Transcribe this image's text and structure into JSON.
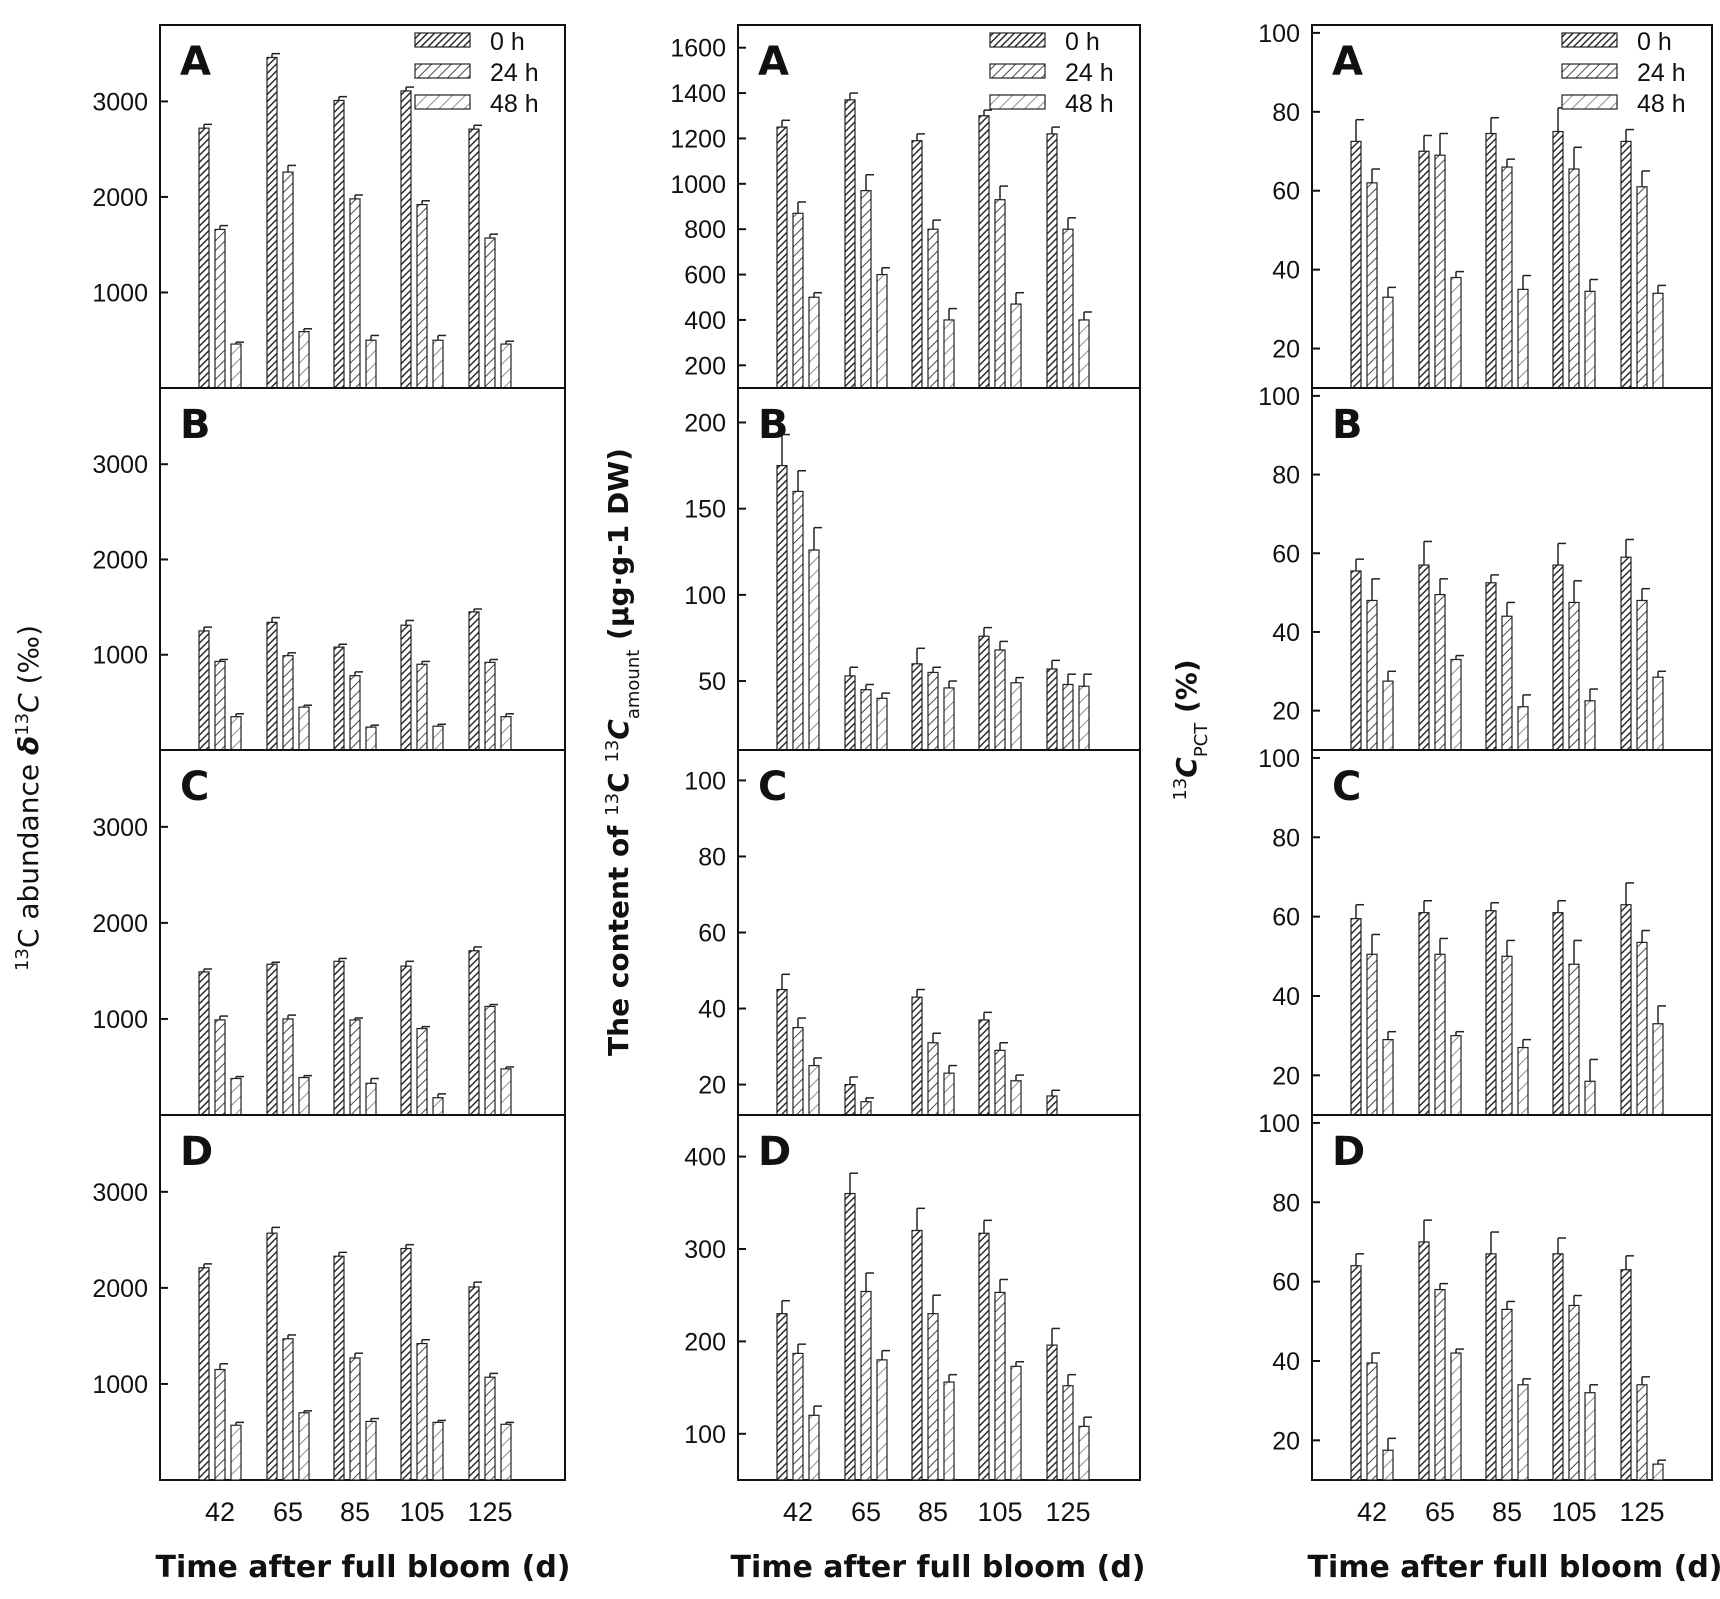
{
  "figure": {
    "xlabel": "Time after full bloom (d)",
    "column_titles": [
      {
        "prefix": "13",
        "main": "C abundance ",
        "delta": "δ",
        "sup2": "13",
        "italic": "C",
        "suffix": " (‰)"
      },
      {
        "prefix": "The content of ",
        "sup": "13",
        "mid": "C ",
        "sup2": "13",
        "italic": "C",
        "sub": "amount",
        "suffix": " (μg·g-1 DW)"
      },
      {
        "sup": "13",
        "italic": "C",
        "sub": "PCT",
        "suffix": " (%)"
      }
    ]
  },
  "legend": [
    "0 h",
    "24 h",
    "48 h"
  ],
  "series_colors": {
    "s0": "#3a3a3a",
    "s1": "#5a5a5a",
    "s2": "#777777"
  },
  "chart_data": [
    {
      "type": "bar",
      "column": 1,
      "panel": "A",
      "title": "A",
      "categories": [
        "42",
        "65",
        "85",
        "105",
        "125"
      ],
      "ylim": [
        0,
        3800
      ],
      "yticks": [
        1000,
        2000,
        3000
      ],
      "series": [
        {
          "name": "0 h",
          "values": [
            2720,
            3460,
            3010,
            3110,
            2710
          ],
          "errors": [
            40,
            40,
            40,
            40,
            40
          ]
        },
        {
          "name": "24 h",
          "values": [
            1660,
            2260,
            1980,
            1920,
            1570
          ],
          "errors": [
            40,
            70,
            40,
            40,
            40
          ]
        },
        {
          "name": "48 h",
          "values": [
            460,
            590,
            500,
            500,
            460
          ],
          "errors": [
            20,
            30,
            50,
            50,
            30
          ]
        }
      ]
    },
    {
      "type": "bar",
      "column": 1,
      "panel": "B",
      "title": "B",
      "categories": [
        "42",
        "65",
        "85",
        "105",
        "125"
      ],
      "ylim": [
        0,
        3800
      ],
      "yticks": [
        1000,
        2000,
        3000
      ],
      "series": [
        {
          "name": "0 h",
          "values": [
            1250,
            1340,
            1080,
            1310,
            1450
          ],
          "errors": [
            40,
            50,
            30,
            50,
            30
          ]
        },
        {
          "name": "24 h",
          "values": [
            930,
            990,
            780,
            900,
            920
          ],
          "errors": [
            20,
            30,
            40,
            30,
            30
          ]
        },
        {
          "name": "48 h",
          "values": [
            350,
            450,
            240,
            250,
            350
          ],
          "errors": [
            30,
            20,
            20,
            20,
            30
          ]
        }
      ]
    },
    {
      "type": "bar",
      "column": 1,
      "panel": "C",
      "title": "C",
      "categories": [
        "42",
        "65",
        "85",
        "105",
        "125"
      ],
      "ylim": [
        0,
        3800
      ],
      "yticks": [
        1000,
        2000,
        3000
      ],
      "series": [
        {
          "name": "0 h",
          "values": [
            1490,
            1570,
            1600,
            1550,
            1710
          ],
          "errors": [
            30,
            20,
            30,
            50,
            40
          ]
        },
        {
          "name": "24 h",
          "values": [
            990,
            1000,
            990,
            900,
            1130
          ],
          "errors": [
            40,
            40,
            20,
            20,
            20
          ]
        },
        {
          "name": "48 h",
          "values": [
            380,
            390,
            330,
            180,
            480
          ],
          "errors": [
            20,
            20,
            50,
            40,
            20
          ]
        }
      ]
    },
    {
      "type": "bar",
      "column": 1,
      "panel": "D",
      "title": "D",
      "categories": [
        "42",
        "65",
        "85",
        "105",
        "125"
      ],
      "ylim": [
        0,
        3800
      ],
      "yticks": [
        1000,
        2000,
        3000
      ],
      "series": [
        {
          "name": "0 h",
          "values": [
            2210,
            2570,
            2330,
            2410,
            2010
          ],
          "errors": [
            40,
            60,
            40,
            40,
            50
          ]
        },
        {
          "name": "24 h",
          "values": [
            1150,
            1470,
            1270,
            1420,
            1070
          ],
          "errors": [
            60,
            40,
            50,
            40,
            40
          ]
        },
        {
          "name": "48 h",
          "values": [
            570,
            700,
            610,
            600,
            580
          ],
          "errors": [
            30,
            20,
            30,
            20,
            20
          ]
        }
      ]
    },
    {
      "type": "bar",
      "column": 2,
      "panel": "A",
      "title": "A",
      "categories": [
        "42",
        "65",
        "85",
        "105",
        "125"
      ],
      "ylim": [
        100,
        1700
      ],
      "yticks": [
        200,
        400,
        600,
        800,
        1000,
        1200,
        1400,
        1600
      ],
      "series": [
        {
          "name": "0 h",
          "values": [
            1250,
            1370,
            1190,
            1300,
            1220
          ],
          "errors": [
            30,
            30,
            30,
            25,
            30
          ]
        },
        {
          "name": "24 h",
          "values": [
            870,
            970,
            800,
            930,
            800
          ],
          "errors": [
            50,
            70,
            40,
            60,
            50
          ]
        },
        {
          "name": "48 h",
          "values": [
            500,
            600,
            400,
            470,
            400
          ],
          "errors": [
            20,
            30,
            50,
            50,
            35
          ]
        }
      ]
    },
    {
      "type": "bar",
      "column": 2,
      "panel": "B",
      "title": "B",
      "categories": [
        "42",
        "65",
        "85",
        "105",
        "125"
      ],
      "ylim": [
        10,
        220
      ],
      "yticks": [
        50,
        100,
        150,
        200
      ],
      "series": [
        {
          "name": "0 h",
          "values": [
            175,
            53,
            60,
            76,
            57
          ],
          "errors": [
            18,
            5,
            9,
            5,
            5
          ]
        },
        {
          "name": "24 h",
          "values": [
            160,
            45,
            55,
            68,
            48
          ],
          "errors": [
            12,
            3,
            3,
            5,
            6
          ]
        },
        {
          "name": "48 h",
          "values": [
            126,
            40,
            46,
            49,
            47
          ],
          "errors": [
            13,
            3,
            4,
            3,
            7
          ]
        }
      ]
    },
    {
      "type": "bar",
      "column": 2,
      "panel": "C",
      "title": "C",
      "categories": [
        "42",
        "65",
        "85",
        "105",
        "125"
      ],
      "ylim": [
        12,
        108
      ],
      "yticks": [
        20,
        40,
        60,
        80,
        100
      ],
      "series": [
        {
          "name": "0 h",
          "values": [
            45,
            20,
            43,
            37,
            17
          ],
          "errors": [
            4,
            2,
            2,
            2,
            1.5
          ]
        },
        {
          "name": "24 h",
          "values": [
            35,
            15.5,
            31,
            29,
            12
          ],
          "errors": [
            2.5,
            1,
            2.5,
            2,
            0
          ]
        },
        {
          "name": "48 h",
          "values": [
            25,
            12,
            23,
            21,
            12
          ],
          "errors": [
            2,
            0,
            2,
            1.5,
            0
          ]
        }
      ]
    },
    {
      "type": "bar",
      "column": 2,
      "panel": "D",
      "title": "D",
      "categories": [
        "42",
        "65",
        "85",
        "105",
        "125"
      ],
      "ylim": [
        50,
        445
      ],
      "yticks": [
        100,
        200,
        300,
        400
      ],
      "series": [
        {
          "name": "0 h",
          "values": [
            230,
            360,
            320,
            317,
            196
          ],
          "errors": [
            14,
            22,
            24,
            14,
            18
          ]
        },
        {
          "name": "24 h",
          "values": [
            187,
            254,
            230,
            253,
            152
          ],
          "errors": [
            10,
            20,
            20,
            14,
            12
          ]
        },
        {
          "name": "48 h",
          "values": [
            120,
            180,
            156,
            173,
            108
          ],
          "errors": [
            10,
            10,
            8,
            5,
            10
          ]
        }
      ]
    },
    {
      "type": "bar",
      "column": 3,
      "panel": "A",
      "title": "A",
      "categories": [
        "42",
        "65",
        "85",
        "105",
        "125"
      ],
      "ylim": [
        10,
        102
      ],
      "yticks": [
        20,
        40,
        60,
        80,
        100
      ],
      "series": [
        {
          "name": "0 h",
          "values": [
            72.5,
            70,
            74.5,
            75,
            72.5
          ],
          "errors": [
            5.5,
            4,
            4,
            6,
            3
          ]
        },
        {
          "name": "24 h",
          "values": [
            62,
            69,
            66,
            65.5,
            61
          ],
          "errors": [
            3.5,
            5.5,
            2,
            5.5,
            4
          ]
        },
        {
          "name": "48 h",
          "values": [
            33,
            38,
            35,
            34.5,
            34
          ],
          "errors": [
            2.5,
            1.5,
            3.5,
            3,
            2
          ]
        }
      ]
    },
    {
      "type": "bar",
      "column": 3,
      "panel": "B",
      "title": "B",
      "categories": [
        "42",
        "65",
        "85",
        "105",
        "125"
      ],
      "ylim": [
        10,
        102
      ],
      "yticks": [
        20,
        40,
        60,
        80,
        100
      ],
      "series": [
        {
          "name": "0 h",
          "values": [
            55.5,
            57,
            52.5,
            57,
            59
          ],
          "errors": [
            3,
            6,
            2,
            5.5,
            4.5
          ]
        },
        {
          "name": "24 h",
          "values": [
            48,
            49.5,
            44,
            47.5,
            48
          ],
          "errors": [
            5.5,
            4,
            3.5,
            5.5,
            3
          ]
        },
        {
          "name": "48 h",
          "values": [
            27.5,
            33,
            21,
            22.5,
            28.5
          ],
          "errors": [
            2.5,
            1,
            3,
            3,
            1.5
          ]
        }
      ]
    },
    {
      "type": "bar",
      "column": 3,
      "panel": "C",
      "title": "C",
      "categories": [
        "42",
        "65",
        "85",
        "105",
        "125"
      ],
      "ylim": [
        10,
        102
      ],
      "yticks": [
        20,
        40,
        60,
        80,
        100
      ],
      "series": [
        {
          "name": "0 h",
          "values": [
            59.5,
            61,
            61.5,
            61,
            63
          ],
          "errors": [
            3.5,
            3,
            2,
            3,
            5.5
          ]
        },
        {
          "name": "24 h",
          "values": [
            50.5,
            50.5,
            50,
            48,
            53.5
          ],
          "errors": [
            5,
            4,
            4,
            6,
            3
          ]
        },
        {
          "name": "48 h",
          "values": [
            29,
            30,
            27,
            18.5,
            33
          ],
          "errors": [
            2,
            1,
            2,
            5.5,
            4.5
          ]
        }
      ]
    },
    {
      "type": "bar",
      "column": 3,
      "panel": "D",
      "title": "D",
      "categories": [
        "42",
        "65",
        "85",
        "105",
        "125"
      ],
      "ylim": [
        10,
        102
      ],
      "yticks": [
        20,
        40,
        60,
        80,
        100
      ],
      "series": [
        {
          "name": "0 h",
          "values": [
            64,
            70,
            67,
            67,
            63
          ],
          "errors": [
            3,
            5.5,
            5.5,
            4,
            3.5
          ]
        },
        {
          "name": "24 h",
          "values": [
            39.5,
            58,
            53,
            54,
            34
          ],
          "errors": [
            2.5,
            1.5,
            2,
            2.5,
            2
          ]
        },
        {
          "name": "48 h",
          "values": [
            17.5,
            42,
            34,
            32,
            14
          ],
          "errors": [
            3,
            1,
            1.5,
            2,
            1
          ]
        }
      ]
    }
  ]
}
